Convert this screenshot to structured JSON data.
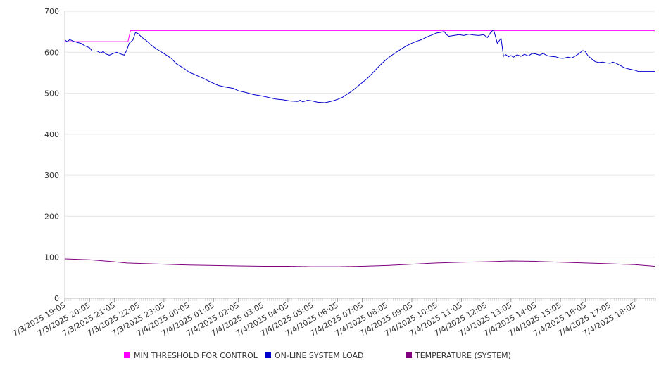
{
  "chart_data": {
    "type": "line",
    "title": "",
    "xlabel": "",
    "ylabel": "",
    "ylim": [
      0,
      700
    ],
    "yticks": [
      0,
      100,
      200,
      300,
      400,
      500,
      600,
      700
    ],
    "grid": "horizontal",
    "legend_position": "bottom",
    "x_tick_labels": [
      "7/3/2025 19:05",
      "7/3/2025 20:05",
      "7/3/2025 21:05",
      "7/3/2025 22:05",
      "7/3/2025 23:05",
      "7/4/2025 00:05",
      "7/4/2025 01:05",
      "7/4/2025 02:05",
      "7/4/2025 03:05",
      "7/4/2025 04:05",
      "7/4/2025 05:05",
      "7/4/2025 06:05",
      "7/4/2025 07:05",
      "7/4/2025 08:05",
      "7/4/2025 09:05",
      "7/4/2025 10:05",
      "7/4/2025 11:05",
      "7/4/2025 12:05",
      "7/4/2025 13:05",
      "7/4/2025 14:05",
      "7/4/2025 15:05",
      "7/4/2025 16:05",
      "7/4/2025 17:05",
      "7/4/2025 18:05"
    ],
    "series": [
      {
        "name": "MIN THRESHOLD FOR CONTROL",
        "color": "#ff00ff",
        "points": [
          [
            0,
            626
          ],
          [
            2.55,
            626
          ],
          [
            2.65,
            653
          ],
          [
            23.8,
            653
          ]
        ]
      },
      {
        "name": "ON-LINE SYSTEM LOAD",
        "color": "#0000cc",
        "points": [
          [
            0,
            630
          ],
          [
            0.1,
            626
          ],
          [
            0.2,
            631
          ],
          [
            0.35,
            627
          ],
          [
            0.5,
            624
          ],
          [
            0.65,
            622
          ],
          [
            0.8,
            616
          ],
          [
            1.0,
            611
          ],
          [
            1.1,
            603
          ],
          [
            1.3,
            603
          ],
          [
            1.45,
            598
          ],
          [
            1.55,
            602
          ],
          [
            1.65,
            596
          ],
          [
            1.8,
            593
          ],
          [
            1.95,
            597
          ],
          [
            2.1,
            600
          ],
          [
            2.25,
            596
          ],
          [
            2.4,
            593
          ],
          [
            2.5,
            605
          ],
          [
            2.6,
            622
          ],
          [
            2.75,
            630
          ],
          [
            2.85,
            648
          ],
          [
            2.95,
            646
          ],
          [
            3.1,
            637
          ],
          [
            3.3,
            628
          ],
          [
            3.5,
            617
          ],
          [
            3.7,
            608
          ],
          [
            4.0,
            597
          ],
          [
            4.3,
            585
          ],
          [
            4.5,
            572
          ],
          [
            4.8,
            561
          ],
          [
            5.0,
            552
          ],
          [
            5.3,
            544
          ],
          [
            5.6,
            536
          ],
          [
            5.9,
            527
          ],
          [
            6.2,
            519
          ],
          [
            6.5,
            515
          ],
          [
            6.8,
            512
          ],
          [
            7.0,
            506
          ],
          [
            7.3,
            502
          ],
          [
            7.6,
            497
          ],
          [
            7.9,
            494
          ],
          [
            8.2,
            490
          ],
          [
            8.5,
            486
          ],
          [
            8.8,
            484
          ],
          [
            9.1,
            481
          ],
          [
            9.4,
            480
          ],
          [
            9.5,
            483
          ],
          [
            9.6,
            479
          ],
          [
            9.8,
            483
          ],
          [
            10.0,
            481
          ],
          [
            10.2,
            478
          ],
          [
            10.5,
            477
          ],
          [
            10.8,
            481
          ],
          [
            11.0,
            485
          ],
          [
            11.2,
            490
          ],
          [
            11.4,
            498
          ],
          [
            11.6,
            506
          ],
          [
            11.8,
            516
          ],
          [
            12.0,
            526
          ],
          [
            12.2,
            536
          ],
          [
            12.4,
            548
          ],
          [
            12.6,
            561
          ],
          [
            12.8,
            573
          ],
          [
            13.0,
            584
          ],
          [
            13.2,
            593
          ],
          [
            13.4,
            601
          ],
          [
            13.6,
            609
          ],
          [
            13.8,
            616
          ],
          [
            14.0,
            622
          ],
          [
            14.2,
            627
          ],
          [
            14.4,
            631
          ],
          [
            14.6,
            637
          ],
          [
            14.8,
            642
          ],
          [
            15.0,
            647
          ],
          [
            15.2,
            649
          ],
          [
            15.3,
            651
          ],
          [
            15.4,
            643
          ],
          [
            15.5,
            639
          ],
          [
            15.7,
            641
          ],
          [
            15.9,
            643
          ],
          [
            16.1,
            641
          ],
          [
            16.3,
            644
          ],
          [
            16.5,
            642
          ],
          [
            16.7,
            641
          ],
          [
            16.9,
            643
          ],
          [
            17.05,
            636
          ],
          [
            17.2,
            650
          ],
          [
            17.3,
            655
          ],
          [
            17.45,
            622
          ],
          [
            17.6,
            634
          ],
          [
            17.7,
            590
          ],
          [
            17.8,
            594
          ],
          [
            17.9,
            589
          ],
          [
            18.0,
            592
          ],
          [
            18.1,
            588
          ],
          [
            18.25,
            594
          ],
          [
            18.4,
            590
          ],
          [
            18.55,
            595
          ],
          [
            18.7,
            591
          ],
          [
            18.85,
            597
          ],
          [
            19.0,
            596
          ],
          [
            19.15,
            593
          ],
          [
            19.3,
            597
          ],
          [
            19.45,
            592
          ],
          [
            19.6,
            590
          ],
          [
            19.8,
            589
          ],
          [
            19.95,
            586
          ],
          [
            20.1,
            585
          ],
          [
            20.3,
            588
          ],
          [
            20.45,
            586
          ],
          [
            20.6,
            591
          ],
          [
            20.75,
            597
          ],
          [
            20.9,
            604
          ],
          [
            21.0,
            602
          ],
          [
            21.1,
            592
          ],
          [
            21.25,
            584
          ],
          [
            21.4,
            577
          ],
          [
            21.55,
            575
          ],
          [
            21.7,
            576
          ],
          [
            21.85,
            574
          ],
          [
            22.0,
            573
          ],
          [
            22.1,
            576
          ],
          [
            22.25,
            573
          ],
          [
            22.4,
            568
          ],
          [
            22.55,
            563
          ],
          [
            22.7,
            560
          ],
          [
            22.85,
            558
          ],
          [
            23.0,
            556
          ],
          [
            23.15,
            553
          ],
          [
            23.8,
            553
          ]
        ]
      },
      {
        "name": "TEMPERATURE (SYSTEM)",
        "color": "#800080",
        "points": [
          [
            0,
            96
          ],
          [
            1.0,
            94
          ],
          [
            2.0,
            89
          ],
          [
            2.5,
            86
          ],
          [
            3.0,
            85
          ],
          [
            4.0,
            83
          ],
          [
            5.0,
            81
          ],
          [
            6.0,
            80
          ],
          [
            7.0,
            79
          ],
          [
            8.0,
            78
          ],
          [
            9.0,
            78
          ],
          [
            10.0,
            77
          ],
          [
            11.0,
            77
          ],
          [
            12.0,
            78
          ],
          [
            13.0,
            80
          ],
          [
            14.0,
            83
          ],
          [
            15.0,
            86
          ],
          [
            16.0,
            88
          ],
          [
            17.0,
            89
          ],
          [
            18.0,
            91
          ],
          [
            19.0,
            90
          ],
          [
            20.0,
            88
          ],
          [
            21.0,
            86
          ],
          [
            22.0,
            84
          ],
          [
            23.0,
            82
          ],
          [
            23.8,
            78
          ]
        ]
      }
    ]
  }
}
